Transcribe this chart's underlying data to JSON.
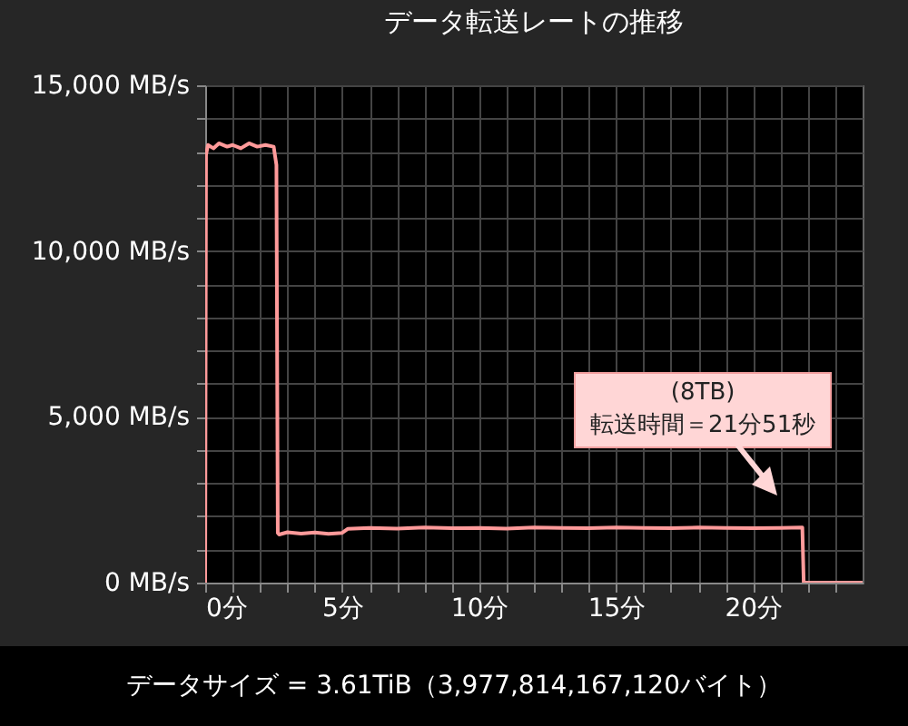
{
  "chart_data": {
    "type": "line",
    "title": "データ転送レートの推移",
    "x": [
      0,
      0.03,
      0.1,
      0.3,
      0.5,
      0.8,
      1.0,
      1.3,
      1.6,
      1.9,
      2.2,
      2.5,
      2.6,
      2.65,
      2.7,
      3.0,
      3.5,
      4.0,
      4.5,
      5.0,
      5.2,
      6,
      7,
      8,
      9,
      10,
      11,
      12,
      13,
      14,
      15,
      16,
      17,
      18,
      19,
      20,
      21,
      21.8,
      21.85,
      21.9,
      23,
      24
    ],
    "series": [
      {
        "color": "#ff9a9a",
        "values": [
          0,
          12900,
          13200,
          13100,
          13250,
          13150,
          13200,
          13100,
          13250,
          13150,
          13200,
          13150,
          12600,
          1500,
          1450,
          1520,
          1480,
          1510,
          1470,
          1500,
          1620,
          1650,
          1630,
          1660,
          1640,
          1650,
          1630,
          1660,
          1650,
          1640,
          1660,
          1650,
          1640,
          1660,
          1650,
          1640,
          1650,
          1660,
          0,
          0,
          0,
          0
        ]
      }
    ],
    "xlim": [
      0,
      24
    ],
    "ylim": [
      0,
      15000
    ],
    "xticks": [
      {
        "value": 0,
        "label": "0分"
      },
      {
        "value": 1,
        "label": null
      },
      {
        "value": 2,
        "label": null
      },
      {
        "value": 3,
        "label": null
      },
      {
        "value": 4,
        "label": null
      },
      {
        "value": 5,
        "label": "5分"
      },
      {
        "value": 6,
        "label": null
      },
      {
        "value": 7,
        "label": null
      },
      {
        "value": 8,
        "label": null
      },
      {
        "value": 9,
        "label": null
      },
      {
        "value": 10,
        "label": "10分"
      },
      {
        "value": 11,
        "label": null
      },
      {
        "value": 12,
        "label": null
      },
      {
        "value": 13,
        "label": null
      },
      {
        "value": 14,
        "label": null
      },
      {
        "value": 15,
        "label": "15分"
      },
      {
        "value": 16,
        "label": null
      },
      {
        "value": 17,
        "label": null
      },
      {
        "value": 18,
        "label": null
      },
      {
        "value": 19,
        "label": null
      },
      {
        "value": 20,
        "label": "20分"
      },
      {
        "value": 21,
        "label": null
      },
      {
        "value": 22,
        "label": null
      },
      {
        "value": 23,
        "label": null
      }
    ],
    "yticks": [
      {
        "value": 0,
        "label": "0 MB/s"
      },
      {
        "value": 1000,
        "label": null
      },
      {
        "value": 2000,
        "label": null
      },
      {
        "value": 3000,
        "label": null
      },
      {
        "value": 4000,
        "label": null
      },
      {
        "value": 5000,
        "label": "5,000 MB/s"
      },
      {
        "value": 6000,
        "label": null
      },
      {
        "value": 7000,
        "label": null
      },
      {
        "value": 8000,
        "label": null
      },
      {
        "value": 9000,
        "label": null
      },
      {
        "value": 10000,
        "label": "10,000 MB/s"
      },
      {
        "value": 11000,
        "label": null
      },
      {
        "value": 12000,
        "label": null
      },
      {
        "value": 13000,
        "label": null
      },
      {
        "value": 14000,
        "label": null
      },
      {
        "value": 15000,
        "label": "15,000 MB/s"
      }
    ],
    "grid": true,
    "annotations": [
      "(8TB)\n転送時間＝21分51秒",
      "データサイズ = 3.61TiB（3,977,814,167,120バイト）"
    ]
  }
}
